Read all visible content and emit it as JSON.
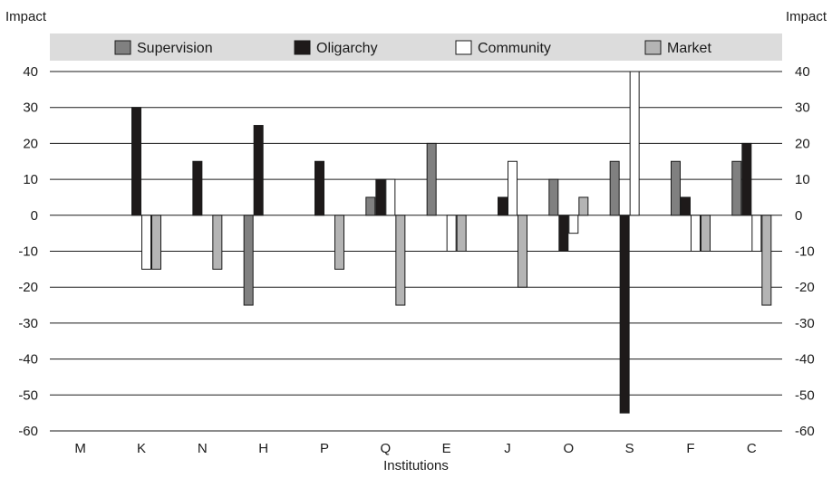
{
  "chart_data": {
    "type": "bar",
    "title": "",
    "xlabel": "Institutions",
    "ylabel": "Impact",
    "ylabel_right": "Impact",
    "ylim": [
      -60,
      40
    ],
    "yticks": [
      40,
      30,
      20,
      10,
      0,
      -10,
      -20,
      -30,
      -40,
      -50,
      -60
    ],
    "ytick_labels": [
      "40",
      "30",
      "20",
      "10",
      "0",
      "-10",
      "-20",
      "-30",
      "-40",
      "-50",
      "-60"
    ],
    "grid": true,
    "legend_position": "top",
    "categories": [
      "M",
      "K",
      "N",
      "H",
      "P",
      "Q",
      "E",
      "J",
      "O",
      "S",
      "F",
      "C"
    ],
    "series": [
      {
        "name": "Supervision",
        "color": "#808080",
        "values": [
          0,
          0,
          0,
          -25,
          0,
          5,
          20,
          0,
          10,
          15,
          15,
          15
        ]
      },
      {
        "name": "Oligarchy",
        "color": "#1e1a1a",
        "values": [
          0,
          30,
          15,
          25,
          15,
          10,
          0,
          5,
          -10,
          -55,
          5,
          20
        ]
      },
      {
        "name": "Community",
        "color": "#ffffff",
        "values": [
          0,
          -15,
          0,
          0,
          0,
          10,
          -10,
          15,
          -5,
          40,
          -10,
          -10
        ]
      },
      {
        "name": "Market",
        "color": "#b4b4b4",
        "values": [
          0,
          -15,
          -15,
          0,
          -15,
          -25,
          -10,
          -20,
          5,
          0,
          -10,
          -25
        ]
      }
    ]
  }
}
